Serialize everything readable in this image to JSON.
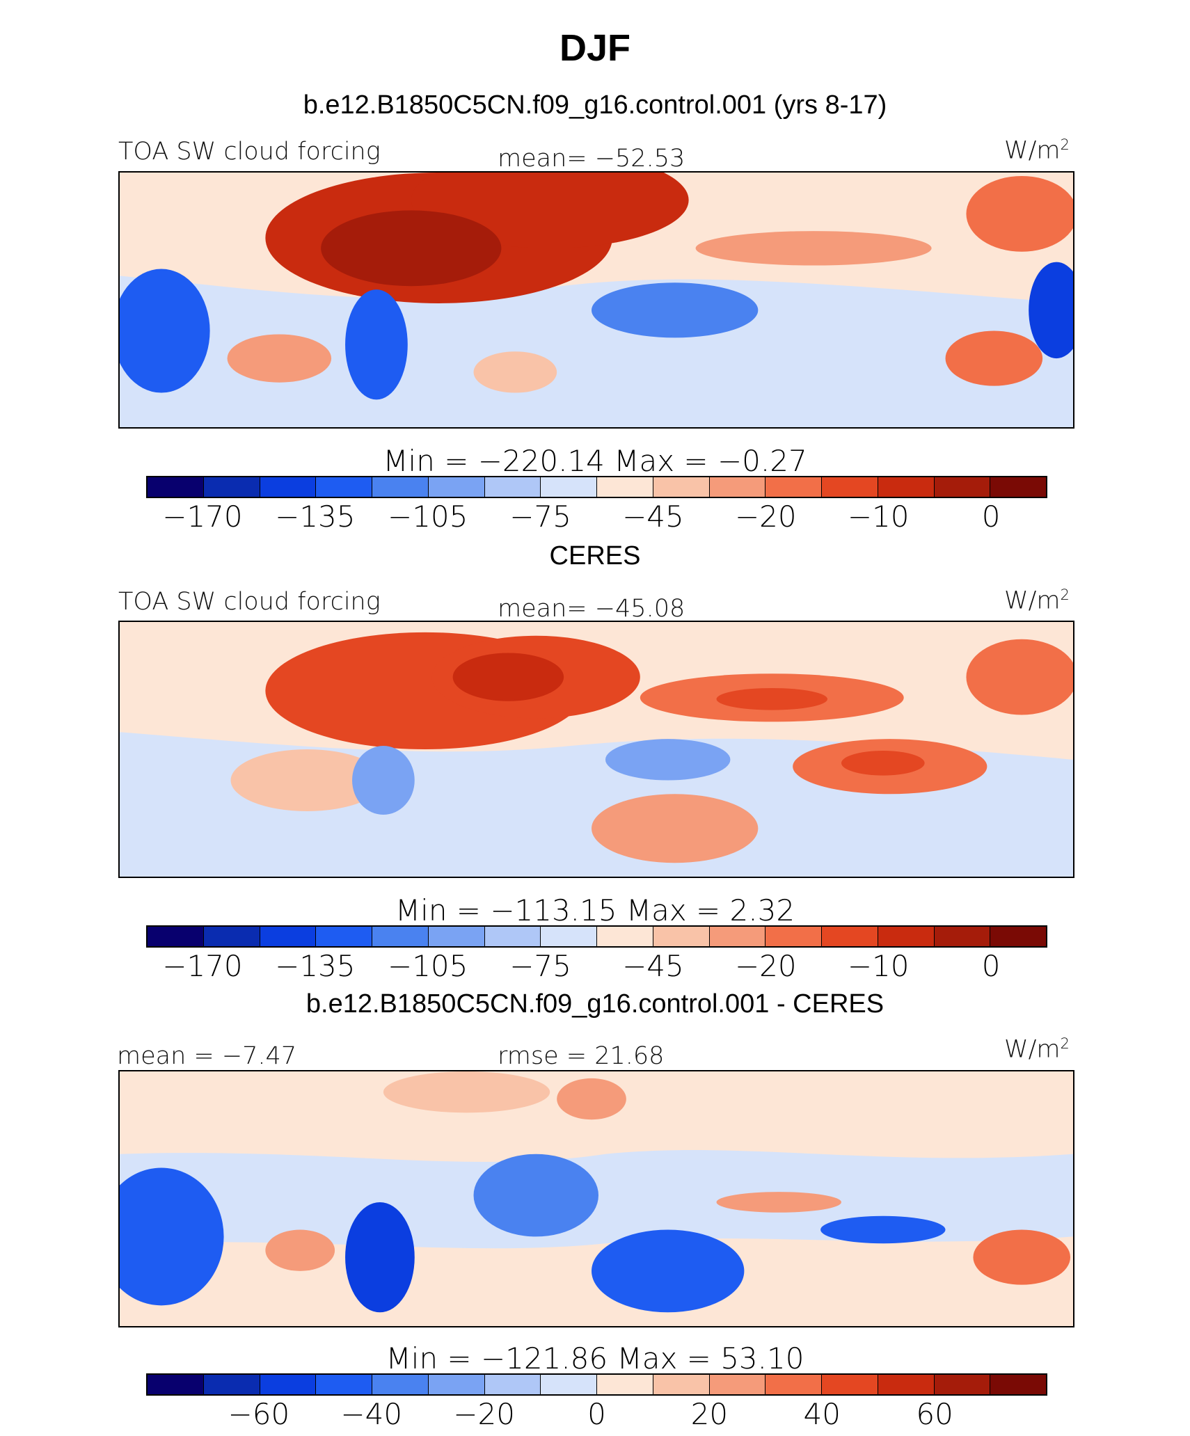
{
  "title": "DJF",
  "panels": [
    {
      "subtitle": "b.e12.B1850C5CN.f09_g16.control.001 (yrs 8-17)",
      "left_label": "TOA SW cloud forcing",
      "center_label": "mean= −52.53",
      "units_label": "W/m",
      "units_sup": "2",
      "minmax": "Min = −220.14 Max = −0.27",
      "colorbar_labels": [
        "−170",
        "−135",
        "−105",
        "−75",
        "−45",
        "−20",
        "−10",
        "0"
      ],
      "variant": "model"
    },
    {
      "subtitle": "CERES",
      "left_label": "TOA SW cloud forcing",
      "center_label": "mean= −45.08",
      "units_label": "W/m",
      "units_sup": "2",
      "minmax": "Min = −113.15 Max = 2.32",
      "colorbar_labels": [
        "−170",
        "−135",
        "−105",
        "−75",
        "−45",
        "−20",
        "−10",
        "0"
      ],
      "variant": "obs"
    },
    {
      "subtitle": "b.e12.B1850C5CN.f09_g16.control.001 - CERES",
      "left_label": "mean = −7.47",
      "center_label": "rmse = 21.68",
      "units_label": "W/m",
      "units_sup": "2",
      "minmax": "Min = −121.86 Max = 53.10",
      "colorbar_labels": [
        "−60",
        "−40",
        "−20",
        "0",
        "20",
        "40",
        "60"
      ],
      "variant": "diff"
    }
  ],
  "colors": {
    "colorbar": [
      "#08006e",
      "#0a2cb0",
      "#0b3ee0",
      "#1e5cf2",
      "#4a82f0",
      "#7aa3f3",
      "#afc7f7",
      "#d6e3fa",
      "#fde6d6",
      "#f9c3a8",
      "#f59b7a",
      "#f26f48",
      "#e44722",
      "#c92b0f",
      "#a51c0a",
      "#7a0a05"
    ]
  }
}
